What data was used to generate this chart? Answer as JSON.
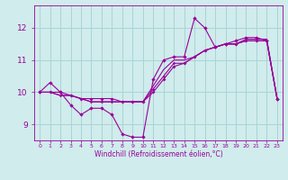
{
  "xlabel": "Windchill (Refroidissement éolien,°C)",
  "x": [
    0,
    1,
    2,
    3,
    4,
    5,
    6,
    7,
    8,
    9,
    10,
    11,
    12,
    13,
    14,
    15,
    16,
    17,
    18,
    19,
    20,
    21,
    22,
    23
  ],
  "line1": [
    10.0,
    10.3,
    10.0,
    9.6,
    9.3,
    9.5,
    9.5,
    9.3,
    8.7,
    8.6,
    8.6,
    10.4,
    11.0,
    11.1,
    11.1,
    12.3,
    12.0,
    11.4,
    11.5,
    11.6,
    11.7,
    11.7,
    11.6,
    9.8
  ],
  "line2": [
    10.0,
    10.0,
    10.0,
    9.9,
    9.8,
    9.8,
    9.8,
    9.8,
    9.7,
    9.7,
    9.7,
    10.0,
    10.4,
    10.8,
    10.9,
    11.1,
    11.3,
    11.4,
    11.5,
    11.5,
    11.6,
    11.6,
    11.6,
    9.8
  ],
  "line3": [
    10.0,
    10.0,
    9.9,
    9.9,
    9.8,
    9.7,
    9.7,
    9.7,
    9.7,
    9.7,
    9.7,
    10.1,
    10.5,
    10.9,
    10.9,
    11.1,
    11.3,
    11.4,
    11.5,
    11.5,
    11.6,
    11.6,
    11.6,
    9.8
  ],
  "line4": [
    10.0,
    10.0,
    9.9,
    9.9,
    9.8,
    9.7,
    9.7,
    9.7,
    9.7,
    9.7,
    9.7,
    10.2,
    10.7,
    11.0,
    11.0,
    11.1,
    11.3,
    11.4,
    11.5,
    11.5,
    11.65,
    11.65,
    11.65,
    9.8
  ],
  "line_color": "#990099",
  "bg_color": "#d0ecec",
  "grid_color": "#aad4d4",
  "ylim": [
    8.5,
    12.7
  ],
  "yticks": [
    9,
    10,
    11,
    12
  ],
  "xlim": [
    -0.5,
    23.5
  ]
}
